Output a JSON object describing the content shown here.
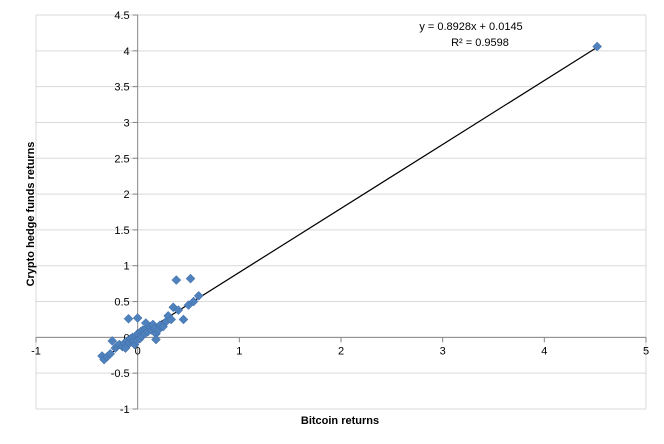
{
  "chart_data": {
    "type": "scatter",
    "xlabel": "Bitcoin returns",
    "ylabel": "Crypto hedge funds returns",
    "xlim": [
      -1,
      5
    ],
    "ylim": [
      -1,
      4.5
    ],
    "x_ticks": [
      -1,
      0,
      1,
      2,
      3,
      4,
      5
    ],
    "y_ticks": [
      -1,
      -0.5,
      0,
      0.5,
      1,
      1.5,
      2,
      2.5,
      3,
      3.5,
      4,
      4.5
    ],
    "x_tick_labels": [
      "-1",
      "0",
      "1",
      "2",
      "3",
      "4",
      "5"
    ],
    "y_tick_labels": [
      "-1",
      "-0.5",
      "0",
      "0.5",
      "1",
      "1.5",
      "2",
      "2.5",
      "3",
      "3.5",
      "4",
      "4.5"
    ],
    "grid": "horizontal",
    "legend": "none",
    "trendline": {
      "slope": 0.8928,
      "intercept": 0.0145,
      "equation": "y = 0.8928x + 0.0145",
      "r_squared": "R² = 0.9598"
    },
    "marker": "diamond",
    "colors": {
      "marker": "#4F81BD",
      "trendline": "#000000",
      "grid": "#D9D9D9",
      "axis": "#868686"
    },
    "points": [
      [
        -0.35,
        -0.26
      ],
      [
        -0.33,
        -0.31
      ],
      [
        -0.3,
        -0.27
      ],
      [
        -0.27,
        -0.23
      ],
      [
        -0.22,
        -0.15
      ],
      [
        -0.2,
        -0.12
      ],
      [
        -0.18,
        -0.1
      ],
      [
        -0.15,
        -0.13
      ],
      [
        -0.13,
        -0.08
      ],
      [
        -0.12,
        -0.15
      ],
      [
        -0.1,
        -0.05
      ],
      [
        -0.08,
        -0.08
      ],
      [
        -0.07,
        -0.02
      ],
      [
        -0.05,
        0.0
      ],
      [
        -0.04,
        -0.05
      ],
      [
        -0.03,
        -0.1
      ],
      [
        -0.02,
        0.02
      ],
      [
        -0.01,
        -0.04
      ],
      [
        0.0,
        0.05
      ],
      [
        0.02,
        -0.02
      ],
      [
        0.03,
        0.08
      ],
      [
        0.04,
        0.02
      ],
      [
        0.05,
        0.1
      ],
      [
        0.07,
        0.05
      ],
      [
        0.08,
        0.12
      ],
      [
        0.1,
        0.08
      ],
      [
        0.12,
        0.15
      ],
      [
        0.14,
        0.1
      ],
      [
        0.15,
        0.18
      ],
      [
        0.17,
        0.12
      ],
      [
        0.18,
        0.05
      ],
      [
        0.2,
        0.1
      ],
      [
        0.22,
        0.17
      ],
      [
        0.25,
        0.15
      ],
      [
        0.28,
        0.22
      ],
      [
        0.3,
        0.3
      ],
      [
        0.33,
        0.25
      ],
      [
        0.35,
        0.42
      ],
      [
        0.4,
        0.38
      ],
      [
        0.45,
        0.25
      ],
      [
        0.5,
        0.45
      ],
      [
        0.55,
        0.5
      ],
      [
        0.6,
        0.58
      ],
      [
        0.38,
        0.8
      ],
      [
        0.52,
        0.82
      ],
      [
        -0.09,
        0.26
      ],
      [
        0.0,
        0.27
      ],
      [
        0.08,
        0.2
      ],
      [
        0.18,
        -0.03
      ],
      [
        -0.25,
        -0.05
      ],
      [
        4.52,
        4.06
      ]
    ]
  }
}
